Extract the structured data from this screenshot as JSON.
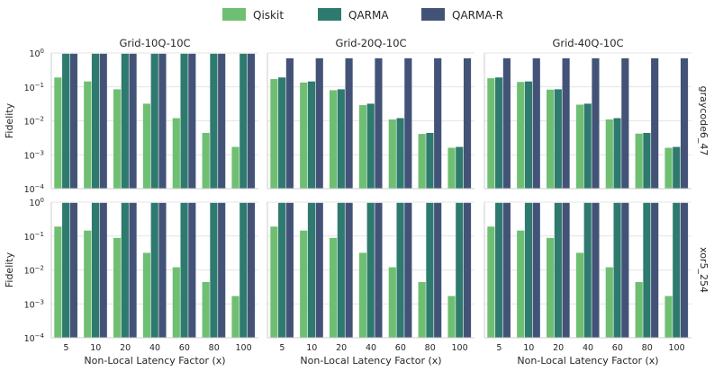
{
  "chart_data": {
    "type": "bar",
    "legend": {
      "placement": "top-center",
      "entries": [
        {
          "name": "Qiskit",
          "color": "#6fbf73"
        },
        {
          "name": "QARMA",
          "color": "#2e7a6e"
        },
        {
          "name": "QARMA-R",
          "color": "#435378"
        }
      ]
    },
    "categories": [
      "5",
      "10",
      "20",
      "40",
      "60",
      "80",
      "100"
    ],
    "xlabel": "Non-Local Latency Factor (x)",
    "ylabel": "Fidelity",
    "yscale": "log",
    "ylim": [
      0.0001,
      1
    ],
    "yticks": [
      {
        "value": 0.0001,
        "base": "10",
        "exp": "−4"
      },
      {
        "value": 0.001,
        "base": "10",
        "exp": "−3"
      },
      {
        "value": 0.01,
        "base": "10",
        "exp": "−2"
      },
      {
        "value": 0.1,
        "base": "10",
        "exp": "−1"
      },
      {
        "value": 1,
        "base": "10",
        "exp": "0"
      }
    ],
    "grid": "horizontal",
    "columns": [
      "Grid-10Q-10C",
      "Grid-20Q-10C",
      "Grid-40Q-10C"
    ],
    "rows": [
      "graycode6_47",
      "xor5_254"
    ],
    "panels": [
      {
        "row": 0,
        "col": 0,
        "series": [
          {
            "name": "Qiskit",
            "values": [
              0.19,
              0.145,
              0.085,
              0.032,
              0.012,
              0.0044,
              0.0017
            ]
          },
          {
            "name": "QARMA",
            "values": [
              0.95,
              0.95,
              0.95,
              0.95,
              0.95,
              0.95,
              0.95
            ]
          },
          {
            "name": "QARMA-R",
            "values": [
              0.95,
              0.95,
              0.95,
              0.95,
              0.95,
              0.95,
              0.95
            ]
          }
        ]
      },
      {
        "row": 0,
        "col": 1,
        "series": [
          {
            "name": "Qiskit",
            "values": [
              0.17,
              0.135,
              0.08,
              0.029,
              0.011,
              0.0041,
              0.0016
            ]
          },
          {
            "name": "QARMA",
            "values": [
              0.19,
              0.145,
              0.085,
              0.032,
              0.012,
              0.0044,
              0.0017
            ]
          },
          {
            "name": "QARMA-R",
            "values": [
              0.7,
              0.7,
              0.7,
              0.7,
              0.7,
              0.7,
              0.7
            ]
          }
        ]
      },
      {
        "row": 0,
        "col": 2,
        "series": [
          {
            "name": "Qiskit",
            "values": [
              0.18,
              0.14,
              0.083,
              0.03,
              0.011,
              0.0042,
              0.0016
            ]
          },
          {
            "name": "QARMA",
            "values": [
              0.19,
              0.145,
              0.085,
              0.032,
              0.012,
              0.0044,
              0.0017
            ]
          },
          {
            "name": "QARMA-R",
            "values": [
              0.7,
              0.7,
              0.7,
              0.7,
              0.7,
              0.7,
              0.7
            ]
          }
        ]
      },
      {
        "row": 1,
        "col": 0,
        "series": [
          {
            "name": "Qiskit",
            "values": [
              0.19,
              0.145,
              0.088,
              0.032,
              0.012,
              0.0044,
              0.0017
            ]
          },
          {
            "name": "QARMA",
            "values": [
              0.95,
              0.95,
              0.95,
              0.95,
              0.95,
              0.95,
              0.95
            ]
          },
          {
            "name": "QARMA-R",
            "values": [
              0.95,
              0.95,
              0.95,
              0.95,
              0.95,
              0.95,
              0.95
            ]
          }
        ]
      },
      {
        "row": 1,
        "col": 1,
        "series": [
          {
            "name": "Qiskit",
            "values": [
              0.19,
              0.145,
              0.088,
              0.032,
              0.012,
              0.0044,
              0.0017
            ]
          },
          {
            "name": "QARMA",
            "values": [
              0.95,
              0.95,
              0.95,
              0.95,
              0.95,
              0.95,
              0.95
            ]
          },
          {
            "name": "QARMA-R",
            "values": [
              0.95,
              0.95,
              0.95,
              0.95,
              0.95,
              0.95,
              0.95
            ]
          }
        ]
      },
      {
        "row": 1,
        "col": 2,
        "series": [
          {
            "name": "Qiskit",
            "values": [
              0.19,
              0.145,
              0.088,
              0.032,
              0.012,
              0.0044,
              0.0017
            ]
          },
          {
            "name": "QARMA",
            "values": [
              0.95,
              0.95,
              0.95,
              0.95,
              0.95,
              0.95,
              0.95
            ]
          },
          {
            "name": "QARMA-R",
            "values": [
              0.95,
              0.95,
              0.95,
              0.95,
              0.95,
              0.95,
              0.95
            ]
          }
        ]
      }
    ]
  }
}
